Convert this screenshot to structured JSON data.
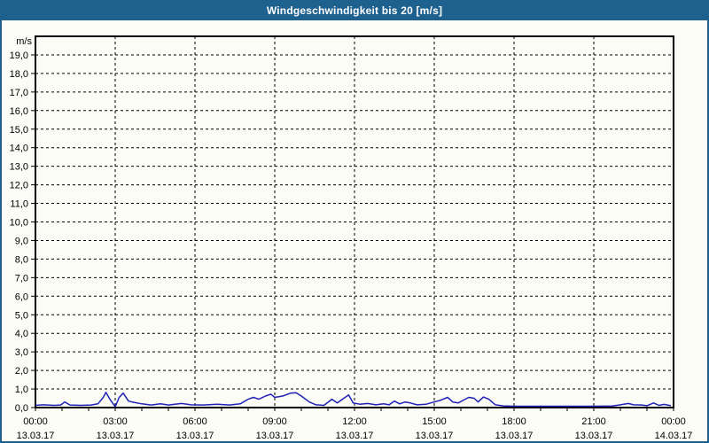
{
  "title": "Windgeschwindigkeit bis 20 [m/s]",
  "colors": {
    "title_bar": "#1E618F",
    "title_text": "#FFFFFF",
    "frame": "#1E618F",
    "background": "#FAFCF5",
    "grid": "#000000",
    "line": "#2121B8"
  },
  "chart_data": {
    "type": "line",
    "title": "Windgeschwindigkeit bis 20 [m/s]",
    "legend": "none",
    "grid_style": "dashed",
    "y_axis": {
      "unit": "m/s",
      "min": 0,
      "max": 20,
      "tick_step": 1,
      "tick_labels": [
        "0,0",
        "1,0",
        "2,0",
        "3,0",
        "4,0",
        "5,0",
        "6,0",
        "7,0",
        "8,0",
        "9,0",
        "10,0",
        "11,0",
        "12,0",
        "13,0",
        "14,0",
        "15,0",
        "16,0",
        "17,0",
        "18,0",
        "19,0"
      ]
    },
    "x_axis": {
      "hours_span": 24,
      "grid_step": 3,
      "minor_step": 1,
      "ticks": [
        {
          "hour": 0,
          "time": "00:00",
          "date": "13.03.17"
        },
        {
          "hour": 3,
          "time": "03:00",
          "date": "13.03.17"
        },
        {
          "hour": 6,
          "time": "06:00",
          "date": "13.03.17"
        },
        {
          "hour": 9,
          "time": "09:00",
          "date": "13.03.17"
        },
        {
          "hour": 12,
          "time": "12:00",
          "date": "13.03.17"
        },
        {
          "hour": 15,
          "time": "15:00",
          "date": "13.03.17"
        },
        {
          "hour": 18,
          "time": "18:00",
          "date": "13.03.17"
        },
        {
          "hour": 21,
          "time": "21:00",
          "date": "13.03.17"
        },
        {
          "hour": 24,
          "time": "00:00",
          "date": "14.03.17"
        }
      ]
    },
    "series": [
      {
        "name": "Windgeschwindigkeit",
        "color": "#2121B8",
        "points": [
          [
            0,
            0.12
          ],
          [
            0.3,
            0.15
          ],
          [
            0.7,
            0.12
          ],
          [
            0.95,
            0.14
          ],
          [
            1.1,
            0.3
          ],
          [
            1.3,
            0.14
          ],
          [
            1.7,
            0.12
          ],
          [
            2.1,
            0.14
          ],
          [
            2.35,
            0.2
          ],
          [
            2.55,
            0.55
          ],
          [
            2.65,
            0.82
          ],
          [
            2.8,
            0.45
          ],
          [
            3.0,
            0.05
          ],
          [
            3.15,
            0.55
          ],
          [
            3.3,
            0.78
          ],
          [
            3.5,
            0.35
          ],
          [
            3.7,
            0.28
          ],
          [
            4.0,
            0.2
          ],
          [
            4.35,
            0.14
          ],
          [
            4.7,
            0.2
          ],
          [
            5.0,
            0.14
          ],
          [
            5.5,
            0.22
          ],
          [
            5.85,
            0.15
          ],
          [
            6.3,
            0.14
          ],
          [
            6.85,
            0.18
          ],
          [
            7.3,
            0.14
          ],
          [
            7.7,
            0.2
          ],
          [
            8.0,
            0.45
          ],
          [
            8.2,
            0.55
          ],
          [
            8.4,
            0.45
          ],
          [
            8.65,
            0.62
          ],
          [
            8.85,
            0.72
          ],
          [
            9.0,
            0.55
          ],
          [
            9.3,
            0.62
          ],
          [
            9.6,
            0.78
          ],
          [
            9.8,
            0.8
          ],
          [
            10.0,
            0.62
          ],
          [
            10.3,
            0.3
          ],
          [
            10.55,
            0.15
          ],
          [
            10.85,
            0.12
          ],
          [
            11.15,
            0.45
          ],
          [
            11.35,
            0.25
          ],
          [
            11.6,
            0.5
          ],
          [
            11.78,
            0.68
          ],
          [
            11.95,
            0.25
          ],
          [
            12.2,
            0.18
          ],
          [
            12.5,
            0.22
          ],
          [
            12.8,
            0.15
          ],
          [
            13.1,
            0.2
          ],
          [
            13.3,
            0.15
          ],
          [
            13.5,
            0.35
          ],
          [
            13.7,
            0.2
          ],
          [
            13.9,
            0.3
          ],
          [
            14.1,
            0.25
          ],
          [
            14.35,
            0.15
          ],
          [
            14.7,
            0.18
          ],
          [
            15.0,
            0.3
          ],
          [
            15.25,
            0.4
          ],
          [
            15.5,
            0.55
          ],
          [
            15.7,
            0.3
          ],
          [
            15.9,
            0.25
          ],
          [
            16.1,
            0.4
          ],
          [
            16.3,
            0.55
          ],
          [
            16.5,
            0.5
          ],
          [
            16.65,
            0.3
          ],
          [
            16.85,
            0.57
          ],
          [
            17.05,
            0.45
          ],
          [
            17.3,
            0.15
          ],
          [
            17.6,
            0.09
          ],
          [
            18.0,
            0.07
          ],
          [
            19.0,
            0.07
          ],
          [
            20.0,
            0.07
          ],
          [
            21.0,
            0.07
          ],
          [
            21.7,
            0.08
          ],
          [
            22.0,
            0.15
          ],
          [
            22.3,
            0.22
          ],
          [
            22.5,
            0.15
          ],
          [
            22.8,
            0.14
          ],
          [
            23.0,
            0.1
          ],
          [
            23.25,
            0.25
          ],
          [
            23.45,
            0.12
          ],
          [
            23.65,
            0.17
          ],
          [
            23.9,
            0.1
          ]
        ]
      }
    ]
  }
}
